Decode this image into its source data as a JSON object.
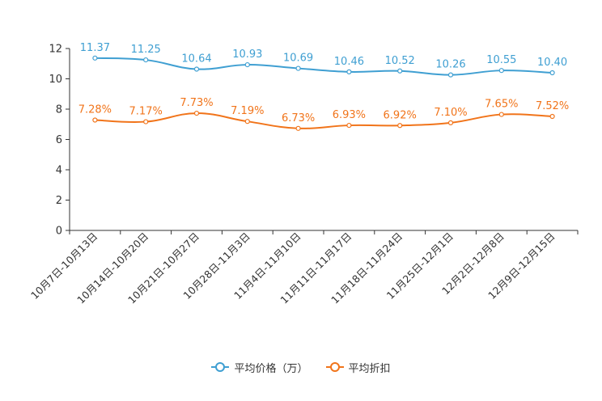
{
  "chart_data": {
    "type": "line",
    "categories": [
      "10月7日-10月13日",
      "10月14日-10月20日",
      "10月21日-10月27日",
      "10月28日-11月3日",
      "11月4日-11月10日",
      "11月11日-11月17日",
      "11月18日-11月24日",
      "11月25日-12月1日",
      "12月2日-12月8日",
      "12月9日-12月15日"
    ],
    "ylim": [
      0,
      12
    ],
    "yticks": [
      0,
      2,
      4,
      6,
      8,
      10,
      12
    ],
    "series": [
      {
        "name": "平均价格（万）",
        "color": "#3f9fd2",
        "values": [
          11.37,
          11.25,
          10.64,
          10.93,
          10.69,
          10.46,
          10.52,
          10.26,
          10.55,
          10.4
        ],
        "labels": [
          "11.37",
          "11.25",
          "10.64",
          "10.93",
          "10.69",
          "10.46",
          "10.52",
          "10.26",
          "10.55",
          "10.40"
        ]
      },
      {
        "name": "平均折扣",
        "color": "#f1741a",
        "values": [
          7.28,
          7.17,
          7.73,
          7.19,
          6.73,
          6.93,
          6.92,
          7.1,
          7.65,
          7.52
        ],
        "labels": [
          "7.28%",
          "7.17%",
          "7.73%",
          "7.19%",
          "6.73%",
          "6.93%",
          "6.92%",
          "7.10%",
          "7.65%",
          "7.52%"
        ]
      }
    ],
    "legend_position": "bottom-center",
    "grid": false
  }
}
